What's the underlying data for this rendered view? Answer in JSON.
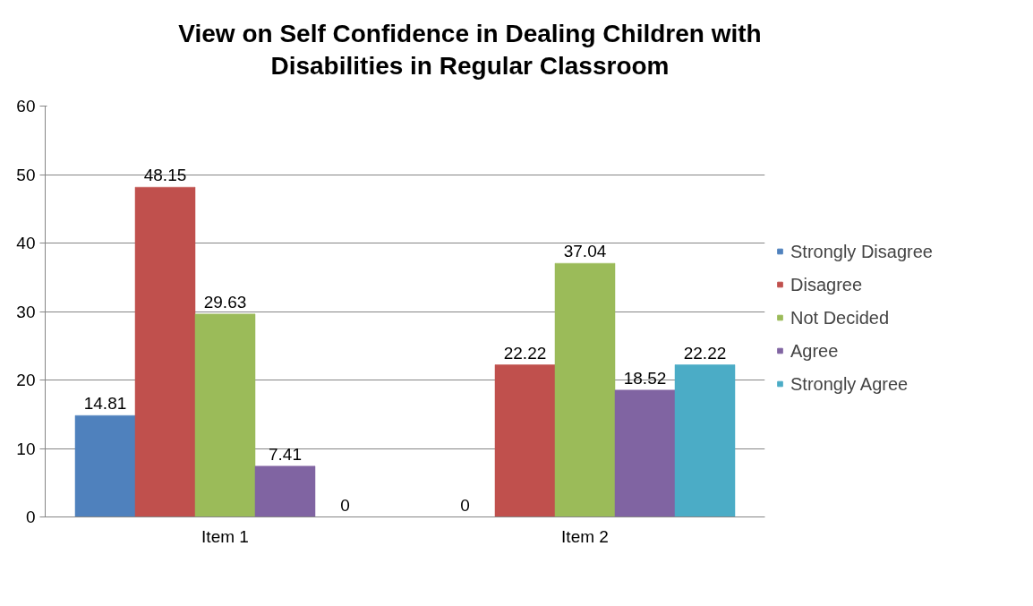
{
  "chart_data": {
    "type": "bar",
    "title": "View on Self Confidence in Dealing Children with Disabilities in Regular Classroom",
    "categories": [
      "Item 1",
      "Item 2"
    ],
    "series": [
      {
        "name": "Strongly Disagree",
        "color": "#4f81bd",
        "values": [
          14.81,
          0
        ]
      },
      {
        "name": "Disagree",
        "color": "#c0504d",
        "values": [
          48.15,
          22.22
        ]
      },
      {
        "name": "Not Decided",
        "color": "#9bbb59",
        "values": [
          29.63,
          37.04
        ]
      },
      {
        "name": "Agree",
        "color": "#8064a2",
        "values": [
          7.41,
          18.52
        ]
      },
      {
        "name": "Strongly Agree",
        "color": "#4bacc6",
        "values": [
          0,
          22.22
        ]
      }
    ],
    "ylim": [
      0,
      60
    ],
    "yticks": [
      0,
      10,
      20,
      30,
      40,
      50,
      60
    ],
    "grid": "y",
    "legend": "right",
    "data_labels": true
  }
}
